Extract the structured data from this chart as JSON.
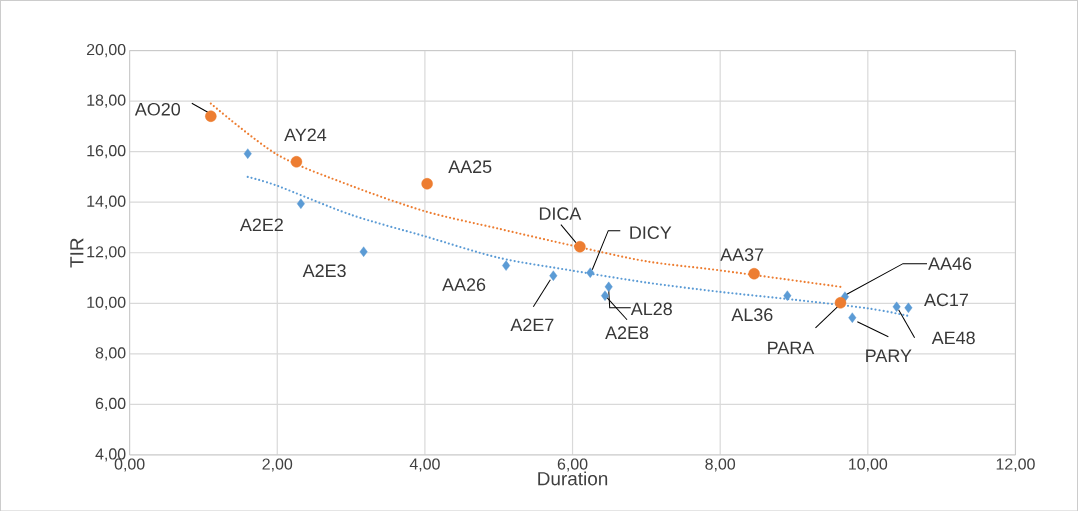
{
  "chart_data": {
    "type": "scatter",
    "xlabel": "Duration",
    "ylabel": "TIR",
    "xlim": [
      0,
      12
    ],
    "ylim": [
      4,
      20
    ],
    "xticks": [
      {
        "value": 0,
        "label": "0,00"
      },
      {
        "value": 2,
        "label": "2,00"
      },
      {
        "value": 4,
        "label": "4,00"
      },
      {
        "value": 6,
        "label": "6,00"
      },
      {
        "value": 8,
        "label": "8,00"
      },
      {
        "value": 10,
        "label": "10,00"
      },
      {
        "value": 12,
        "label": "12,00"
      }
    ],
    "yticks": [
      {
        "value": 4,
        "label": "4,00"
      },
      {
        "value": 6,
        "label": "6,00"
      },
      {
        "value": 8,
        "label": "8,00"
      },
      {
        "value": 10,
        "label": "10,00"
      },
      {
        "value": 12,
        "label": "12,00"
      },
      {
        "value": 14,
        "label": "14,00"
      },
      {
        "value": 16,
        "label": "16,00"
      },
      {
        "value": 18,
        "label": "18,00"
      },
      {
        "value": 20,
        "label": "20,00"
      }
    ],
    "grid": true,
    "series": [
      {
        "type": "line",
        "color": "#5b9bd5",
        "line_style": "dotted",
        "marker": "none",
        "x": [
          1.6,
          2,
          3,
          4,
          5,
          6,
          7,
          8,
          9,
          10,
          10.55
        ],
        "values": [
          15.0,
          14.65,
          13.5,
          12.65,
          11.8,
          11.29,
          10.82,
          10.45,
          10.14,
          9.8,
          9.5
        ]
      },
      {
        "type": "line",
        "color": "#ed7d31",
        "line_style": "dotted",
        "marker": "none",
        "x": [
          1.1,
          2,
          3,
          4,
          5,
          6,
          7,
          8,
          9.63
        ],
        "values": [
          17.9,
          15.88,
          14.65,
          13.64,
          12.95,
          12.28,
          11.66,
          11.3,
          10.65
        ]
      },
      {
        "color": "#5b9bd5",
        "marker": "diamond",
        "x": [
          1.6,
          2.32,
          3.17,
          5.1,
          5.74,
          6.24,
          6.49,
          6.44,
          8.91,
          9.69,
          9.79,
          10.39,
          10.55
        ],
        "values": [
          15.92,
          13.94,
          12.04,
          11.49,
          11.09,
          11.21,
          10.65,
          10.3,
          10.3,
          10.26,
          9.43,
          9.86,
          9.82
        ]
      },
      {
        "color": "#ed7d31",
        "marker": "circle",
        "x": [
          1.1,
          2.26,
          4.03,
          6.1,
          8.46,
          9.63
        ],
        "values": [
          17.4,
          15.6,
          14.73,
          12.24,
          11.17,
          10.02
        ]
      }
    ],
    "annotations": [
      {
        "text": "AO20",
        "x": 1.1,
        "y": 17.4
      },
      {
        "text": "AY24",
        "x": 2.26,
        "y": 15.6
      },
      {
        "text": "AA25",
        "x": 4.03,
        "y": 14.73
      },
      {
        "text": "DICA",
        "x": 6.1,
        "y": 12.24
      },
      {
        "text": "AA37",
        "x": 8.46,
        "y": 11.17
      },
      {
        "text": "PARA",
        "x": 9.63,
        "y": 10.02
      },
      {
        "text": "A2E2",
        "x": 2.32,
        "y": 13.94
      },
      {
        "text": "A2E3",
        "x": 3.17,
        "y": 12.04
      },
      {
        "text": "AA26",
        "x": 5.1,
        "y": 11.49
      },
      {
        "text": "A2E7",
        "x": 5.74,
        "y": 11.09
      },
      {
        "text": "DICY",
        "x": 6.24,
        "y": 11.21
      },
      {
        "text": "AL28",
        "x": 6.49,
        "y": 10.65
      },
      {
        "text": "A2E8",
        "x": 6.44,
        "y": 10.3
      },
      {
        "text": "AL36",
        "x": 8.91,
        "y": 10.3
      },
      {
        "text": "AA46",
        "x": 9.69,
        "y": 10.26
      },
      {
        "text": "PARY",
        "x": 9.79,
        "y": 9.43
      },
      {
        "text": "AE48",
        "x": 10.39,
        "y": 9.86
      },
      {
        "text": "AC17",
        "x": 10.55,
        "y": 9.82
      }
    ]
  }
}
